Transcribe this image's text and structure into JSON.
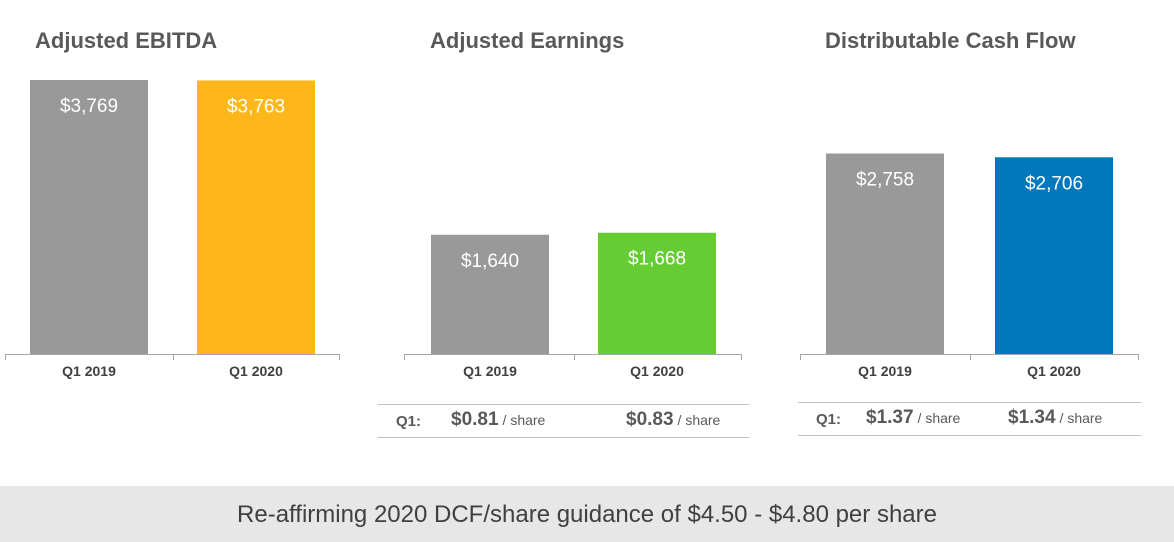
{
  "colors": {
    "prior_year_bar": "#999999",
    "ebitda_q1_2020": "#fdb71a",
    "earnings_q1_2020": "#66cc33",
    "dcf_q1_2020": "#0078bd",
    "axis": "#a6a6a6"
  },
  "chart_data": [
    {
      "type": "bar",
      "title": "Adjusted EBITDA",
      "categories": [
        "Q1 2019",
        "Q1 2020"
      ],
      "values": [
        3769,
        3763
      ],
      "value_labels": [
        "$3,769",
        "$3,763"
      ],
      "colors": [
        "#999999",
        "#fdb71a"
      ]
    },
    {
      "type": "bar",
      "title": "Adjusted Earnings",
      "categories": [
        "Q1 2019",
        "Q1 2020"
      ],
      "values": [
        1640,
        1668
      ],
      "value_labels": [
        "$1,640",
        "$1,668"
      ],
      "colors": [
        "#999999",
        "#66cc33"
      ]
    },
    {
      "type": "bar",
      "title": "Distributable Cash Flow",
      "categories": [
        "Q1 2019",
        "Q1 2020"
      ],
      "values": [
        2758,
        2706
      ],
      "value_labels": [
        "$2,758",
        "$2,706"
      ],
      "colors": [
        "#999999",
        "#0078bd"
      ]
    }
  ],
  "per_share": [
    {
      "chart": "Adjusted Earnings",
      "label": "Q1:",
      "unit": "/ share",
      "values": [
        "$0.81",
        "$0.83"
      ]
    },
    {
      "chart": "Distributable Cash Flow",
      "label": "Q1:",
      "unit": "/ share",
      "values": [
        "$1.37",
        "$1.34"
      ]
    }
  ],
  "footer": {
    "text": "Re-affirming 2020 DCF/share guidance of $4.50 - $4.80 per share"
  }
}
